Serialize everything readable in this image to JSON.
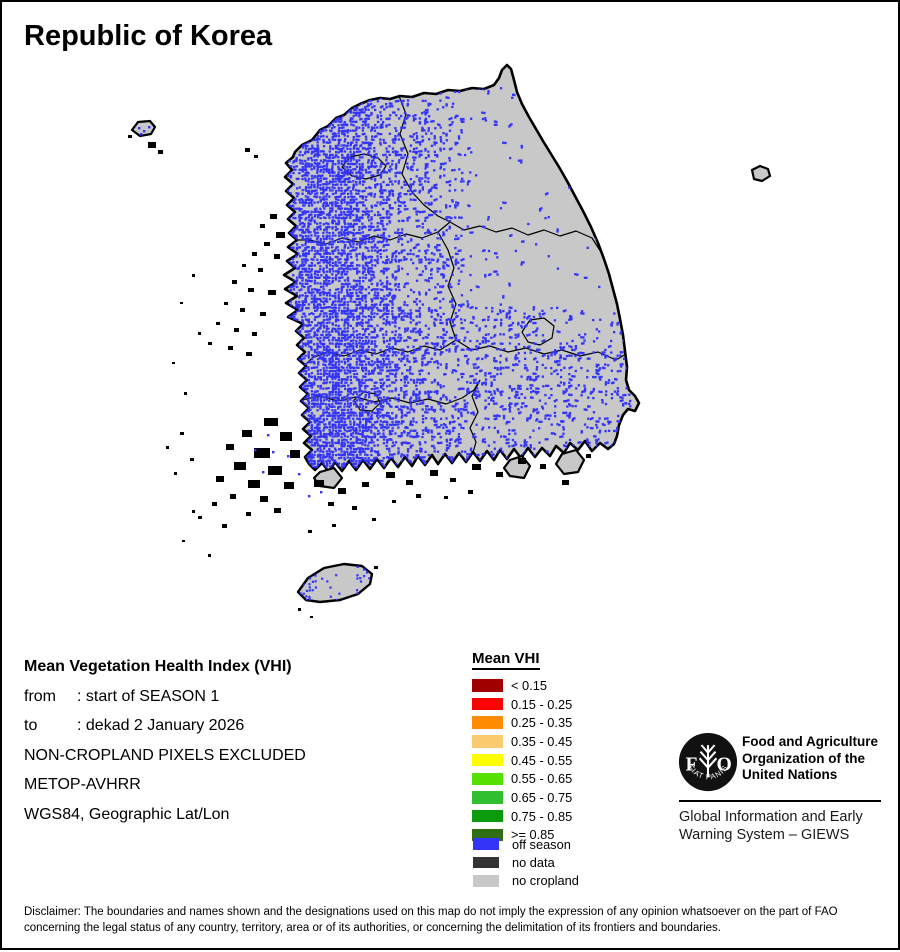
{
  "title": "Republic of Korea",
  "map": {
    "colors": {
      "land": "#C8C8C8",
      "coastline": "#000000",
      "off_season_blue": "#3434F8"
    }
  },
  "info": {
    "heading": "Mean Vegetation Health Index (VHI)",
    "rows": [
      {
        "label": "from",
        "value": ": start of SEASON 1"
      },
      {
        "label": "to",
        "value": ": dekad 2 January 2026"
      }
    ],
    "lines": [
      "NON-CROPLAND PIXELS EXCLUDED",
      "METOP-AVHRR",
      "WGS84, Geographic Lat/Lon"
    ]
  },
  "legend": {
    "title": "Mean VHI",
    "classes": [
      {
        "label": "< 0.15",
        "color": "#A00000"
      },
      {
        "label": "0.15 - 0.25",
        "color": "#FF0000"
      },
      {
        "label": "0.25 - 0.35",
        "color": "#FF8C00"
      },
      {
        "label": "0.35 - 0.45",
        "color": "#FBCB72"
      },
      {
        "label": "0.45 - 0.55",
        "color": "#FFFF00"
      },
      {
        "label": "0.55 - 0.65",
        "color": "#55E000"
      },
      {
        "label": "0.65 - 0.75",
        "color": "#2FBF2F"
      },
      {
        "label": "0.75 - 0.85",
        "color": "#0C9B0C"
      },
      {
        "label": ">= 0.85",
        "color": "#2F6E13"
      }
    ],
    "extras": [
      {
        "label": "off season",
        "color": "#3434F8"
      },
      {
        "label": "no data",
        "color": "#333333"
      },
      {
        "label": "no cropland",
        "color": "#C8C8C8"
      }
    ]
  },
  "fao": {
    "logo_motto": "FIAT   PANIS",
    "logo_letters": {
      "f": "F",
      "o": "O"
    },
    "org_lines": [
      "Food and Agriculture",
      "Organization of the",
      "United Nations"
    ],
    "giews_lines": [
      "Global Information and Early",
      "Warning System – GIEWS"
    ]
  },
  "disclaimer": {
    "lines": [
      "Disclaimer: The boundaries and names shown and the designations used on this map do not imply the expression of any opinion whatsoever on the part of FAO",
      "concerning the legal status of any country, territory, area or of its authorities, or concerning the delimitation of its frontiers and boundaries."
    ]
  }
}
